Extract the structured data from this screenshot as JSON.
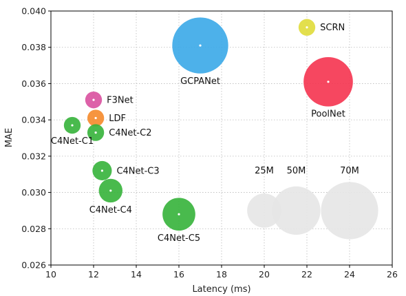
{
  "chart_data": {
    "type": "scatter",
    "xlabel": "Latency (ms)",
    "ylabel": "MAE",
    "xlim": [
      10,
      26
    ],
    "ylim": [
      0.026,
      0.04
    ],
    "xticks": [
      "10",
      "12",
      "14",
      "16",
      "18",
      "20",
      "22",
      "24",
      "26"
    ],
    "yticks": [
      "0.026",
      "0.028",
      "0.030",
      "0.032",
      "0.034",
      "0.036",
      "0.038",
      "0.040"
    ],
    "grid": true,
    "points": [
      {
        "label": "GCPANet",
        "x": 17.0,
        "y": 0.0381,
        "size_m": 67,
        "color": "#3aa8e8",
        "label_pos": "below"
      },
      {
        "label": "SCRN",
        "x": 22.0,
        "y": 0.0391,
        "size_m": 6,
        "color": "#e0dc3a",
        "label_pos": "right"
      },
      {
        "label": "PoolNet",
        "x": 23.0,
        "y": 0.0361,
        "size_m": 52,
        "color": "#f5334f",
        "label_pos": "below"
      },
      {
        "label": "F3Net",
        "x": 12.0,
        "y": 0.0351,
        "size_m": 6,
        "color": "#d9509e",
        "label_pos": "right"
      },
      {
        "label": "LDF",
        "x": 12.1,
        "y": 0.0341,
        "size_m": 6,
        "color": "#f58a2a",
        "label_pos": "right"
      },
      {
        "label": "C4Net-C1",
        "x": 11.0,
        "y": 0.0337,
        "size_m": 6,
        "color": "#35b33a",
        "label_pos": "below"
      },
      {
        "label": "C4Net-C2",
        "x": 12.1,
        "y": 0.0333,
        "size_m": 6,
        "color": "#35b33a",
        "label_pos": "right"
      },
      {
        "label": "C4Net-C3",
        "x": 12.4,
        "y": 0.0312,
        "size_m": 8,
        "color": "#35b33a",
        "label_pos": "right"
      },
      {
        "label": "C4Net-C4",
        "x": 12.8,
        "y": 0.0301,
        "size_m": 12,
        "color": "#35b33a",
        "label_pos": "below"
      },
      {
        "label": "C4Net-C5",
        "x": 16.0,
        "y": 0.0288,
        "size_m": 23,
        "color": "#35b33a",
        "label_pos": "below"
      }
    ],
    "size_legend": [
      {
        "label": "25M",
        "x": 20.0,
        "y": 0.029,
        "size_m": 25
      },
      {
        "label": "50M",
        "x": 21.5,
        "y": 0.029,
        "size_m": 50
      },
      {
        "label": "70M",
        "x": 24.0,
        "y": 0.029,
        "size_m": 70
      }
    ],
    "size_legend_color": "#e6e6e6"
  }
}
